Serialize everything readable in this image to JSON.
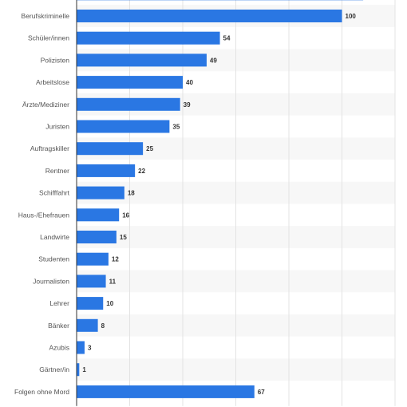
{
  "chart_data": {
    "type": "bar",
    "orientation": "horizontal",
    "categories": [
      "Berufskriminelle",
      "Schüler/innen",
      "Polizisten",
      "Arbeitslose",
      "Ärzte/Mediziner",
      "Juristen",
      "Auftragskiller",
      "Rentner",
      "Schifffahrt",
      "Haus-/Ehefrauen",
      "Landwirte",
      "Studenten",
      "Journalisten",
      "Lehrer",
      "Bänker",
      "Azubis",
      "Gärtner/in",
      "Folgen ohne Mord"
    ],
    "values": [
      100,
      54,
      49,
      40,
      39,
      35,
      25,
      22,
      18,
      16,
      15,
      12,
      11,
      10,
      8,
      3,
      1,
      67
    ],
    "partial_top_bar_value": 108,
    "xlim": [
      0,
      120
    ],
    "grid": true,
    "legend": "none",
    "colors": {
      "bar": "#2a77e3",
      "band": "#f7f7f7",
      "grid": "#e3e3e3",
      "axis": "#333333"
    }
  }
}
